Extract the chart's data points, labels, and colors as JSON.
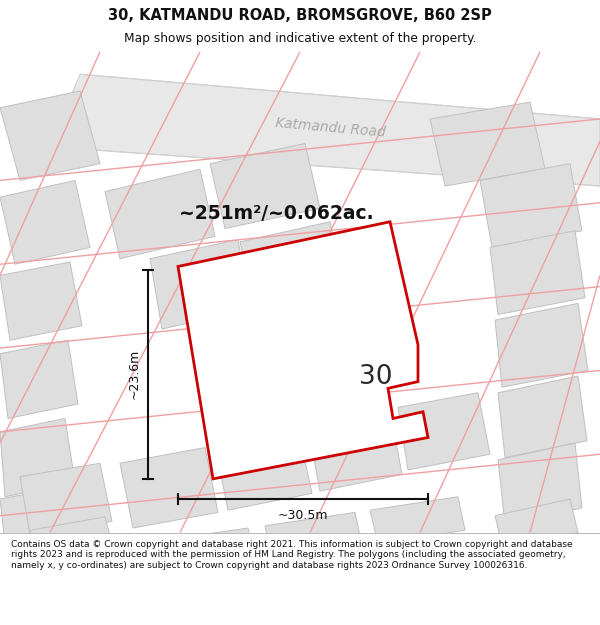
{
  "title_line1": "30, KATMANDU ROAD, BROMSGROVE, B60 2SP",
  "title_line2": "Map shows position and indicative extent of the property.",
  "footer_text": "Contains OS data © Crown copyright and database right 2021. This information is subject to Crown copyright and database rights 2023 and is reproduced with the permission of HM Land Registry. The polygons (including the associated geometry, namely x, y co-ordinates) are subject to Crown copyright and database rights 2023 Ordnance Survey 100026316.",
  "area_label": "~251m²/~0.062ac.",
  "number_label": "30",
  "dim_width": "~30.5m",
  "dim_height": "~23.6m",
  "road_label": "Katmandu Road",
  "bg_color": "#f0f0f0",
  "plot_fill": "#ffffff",
  "plot_stroke": "#cc0000",
  "building_fill": "#dedede",
  "building_edge": "#c0c0c0",
  "road_fill": "#e8e8e8",
  "road_edge": "#d0d0d0",
  "pink_line": "#f0a0a0",
  "road_label_color": "#aaaaaa",
  "dim_color": "#111111",
  "title_color": "#111111",
  "footer_color": "#111111"
}
